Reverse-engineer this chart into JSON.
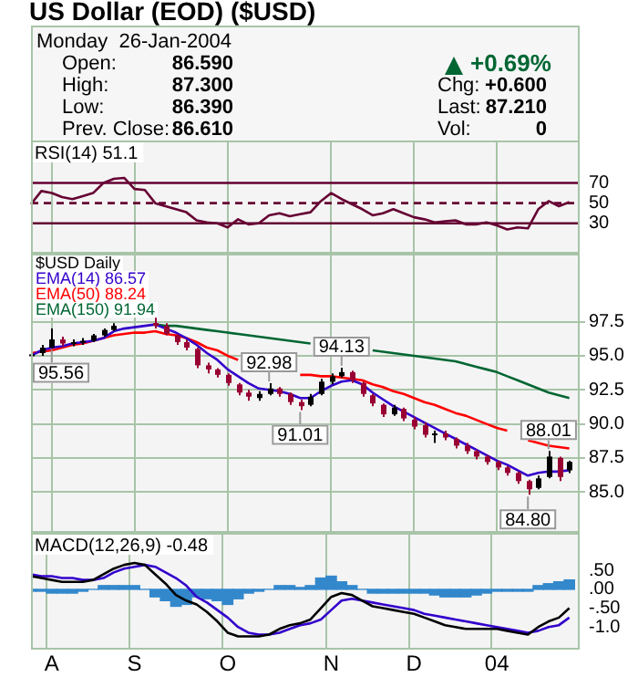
{
  "chart_data": [
    {
      "type": "other",
      "title": "US Dollar (EOD) ($USD)",
      "annotations": [
        "Monday  26-Jan-2004",
        "Open:",
        "86.590",
        "High:",
        "87.300",
        "Low:",
        "86.390",
        "Prev. Close:",
        "86.610",
        "+0.69%",
        "Chg:",
        "+0.600",
        "Last:",
        "87.210",
        "Vol:",
        "0"
      ]
    },
    {
      "type": "line",
      "title": "RSI(14) 51.1",
      "series": [
        {
          "color": "#660033",
          "values": [
            49,
            62,
            60,
            56,
            54,
            57,
            60,
            70,
            74,
            75,
            64,
            63,
            50,
            47,
            44,
            41,
            33,
            31,
            30,
            26,
            34,
            29,
            30,
            38,
            40,
            37,
            39,
            41,
            52,
            60,
            54,
            49,
            44,
            38,
            40,
            44,
            40,
            36,
            34,
            31,
            32,
            33,
            29,
            29,
            31,
            28,
            24,
            26,
            25,
            44,
            52,
            47,
            51,
            null
          ]
        }
      ],
      "ylim": [
        0,
        112
      ],
      "yticks": [
        30,
        50,
        70
      ],
      "ref_lines": [
        {
          "axis": "y",
          "value": 70,
          "color": "#660033"
        },
        {
          "axis": "y",
          "value": 50,
          "color": "#660033",
          "line_style": "dashed"
        },
        {
          "axis": "y",
          "value": 30,
          "color": "#660033"
        }
      ],
      "grid": "x",
      "tick_labels": "y"
    },
    {
      "type": "candlestick",
      "legend_title": "$USD Daily",
      "legend": "top left",
      "ohlc": [
        [
          95.0,
          95.3,
          94.8,
          95.1
        ],
        [
          95.2,
          95.8,
          95.0,
          95.6
        ],
        [
          95.6,
          97.0,
          95.56,
          96.2
        ],
        [
          96.2,
          96.4,
          95.7,
          95.9
        ],
        [
          95.9,
          96.2,
          95.7,
          96.0
        ],
        [
          96.0,
          96.3,
          95.8,
          96.1
        ],
        [
          96.1,
          96.6,
          96.0,
          96.5
        ],
        [
          96.5,
          97.0,
          96.4,
          96.9
        ],
        [
          96.9,
          97.4,
          96.8,
          97.2
        ],
        null,
        null,
        null,
        [
          97.4,
          97.8,
          97.0,
          97.2
        ],
        [
          97.2,
          97.4,
          96.5,
          96.6
        ],
        [
          96.5,
          96.6,
          95.8,
          96.0
        ],
        [
          96.0,
          96.2,
          95.4,
          95.6
        ],
        [
          95.5,
          95.6,
          94.1,
          94.3
        ],
        [
          94.3,
          94.5,
          93.7,
          94.0
        ],
        [
          94.0,
          94.1,
          93.4,
          93.6
        ],
        [
          93.6,
          93.7,
          92.8,
          93.0
        ],
        [
          92.9,
          93.0,
          92.1,
          92.3
        ],
        [
          92.3,
          92.5,
          91.7,
          92.0
        ],
        [
          91.9,
          92.4,
          91.7,
          92.2
        ],
        [
          92.2,
          92.98,
          92.1,
          92.6
        ],
        [
          92.6,
          92.7,
          92.0,
          92.2
        ],
        [
          92.2,
          92.3,
          91.4,
          91.6
        ],
        [
          91.6,
          91.8,
          91.01,
          91.3
        ],
        [
          91.4,
          92.2,
          91.3,
          92.0
        ],
        [
          92.2,
          93.3,
          92.1,
          93.1
        ],
        [
          93.1,
          93.7,
          92.9,
          93.5
        ],
        [
          93.5,
          94.13,
          93.4,
          93.8
        ],
        [
          93.8,
          93.9,
          93.0,
          93.2
        ],
        [
          93.0,
          93.1,
          92.0,
          92.2
        ],
        [
          92.1,
          92.2,
          91.3,
          91.5
        ],
        [
          91.4,
          91.5,
          90.5,
          90.7
        ],
        [
          90.7,
          91.4,
          90.6,
          91.2
        ],
        [
          91.1,
          91.2,
          90.2,
          90.4
        ],
        [
          90.3,
          90.5,
          89.6,
          89.8
        ],
        [
          89.9,
          90.1,
          89.0,
          89.2
        ],
        [
          89.2,
          89.5,
          88.6,
          89.3
        ],
        [
          89.3,
          89.5,
          88.8,
          89.0
        ],
        [
          88.9,
          89.0,
          88.2,
          88.4
        ],
        [
          88.4,
          88.6,
          87.8,
          88.0
        ],
        [
          88.0,
          88.1,
          87.4,
          87.6
        ],
        [
          87.6,
          87.7,
          87.0,
          87.2
        ],
        [
          87.2,
          87.3,
          86.6,
          86.8
        ],
        [
          86.8,
          86.9,
          86.2,
          86.4
        ],
        [
          86.4,
          86.5,
          85.6,
          85.8
        ],
        [
          85.8,
          85.9,
          84.8,
          85.2
        ],
        [
          85.3,
          86.2,
          85.2,
          86.0
        ],
        [
          86.1,
          88.01,
          86.0,
          87.6
        ],
        [
          87.5,
          87.6,
          85.8,
          86.1
        ],
        [
          86.59,
          87.3,
          86.39,
          87.21
        ],
        null
      ],
      "colors": [
        "#000000",
        "#000000",
        "#000000",
        "#990033",
        "#000000",
        "#000000",
        "#000000",
        "#000000",
        "#000000",
        null,
        null,
        null,
        "#990033",
        "#990033",
        "#990033",
        "#990033",
        "#990033",
        "#990033",
        "#990033",
        "#990033",
        "#990033",
        "#990033",
        "#000000",
        "#000000",
        "#990033",
        "#990033",
        "#990033",
        "#000000",
        "#000000",
        "#000000",
        "#000000",
        "#990033",
        "#990033",
        "#990033",
        "#990033",
        "#000000",
        "#990033",
        "#990033",
        "#990033",
        "#000000",
        "#990033",
        "#990033",
        "#990033",
        "#990033",
        "#990033",
        "#990033",
        "#990033",
        "#990033",
        "#990033",
        "#000000",
        "#000000",
        "#990033",
        "#000000",
        null
      ],
      "series": [
        {
          "name": "EMA(14) 86.57",
          "type": "line",
          "color": "#3300cc",
          "values": [
            95.0,
            95.4,
            95.6,
            95.7,
            95.9,
            96.0,
            96.1,
            96.3,
            96.8,
            97.0,
            97.1,
            97.2,
            97.3,
            97.0,
            96.7,
            96.3,
            95.8,
            95.2,
            94.7,
            94.0,
            93.5,
            93.0,
            92.6,
            92.5,
            92.4,
            92.2,
            91.9,
            91.9,
            92.4,
            92.8,
            93.1,
            93.2,
            92.9,
            92.3,
            91.8,
            91.3,
            90.9,
            90.5,
            90.1,
            89.7,
            89.3,
            88.9,
            88.5,
            88.1,
            87.7,
            87.3,
            87.0,
            86.6,
            86.2,
            86.4,
            86.5,
            86.5,
            86.6,
            null
          ]
        },
        {
          "name": "EMA(50) 88.24",
          "type": "line",
          "color": "#ff0000",
          "values": [
            95.2,
            95.3,
            95.4,
            95.6,
            95.8,
            95.9,
            96.1,
            96.3,
            96.5,
            96.6,
            96.7,
            96.7,
            96.8,
            96.6,
            96.5,
            96.3,
            96.0,
            95.6,
            95.4,
            95.0,
            94.7,
            null,
            null,
            null,
            null,
            null,
            93.6,
            93.6,
            93.5,
            93.5,
            93.4,
            93.3,
            93.2,
            92.9,
            92.7,
            92.4,
            92.2,
            91.9,
            91.6,
            91.4,
            91.1,
            90.8,
            90.6,
            90.3,
            90.0,
            89.7,
            89.5,
            null,
            88.8,
            88.6,
            88.4,
            88.3,
            88.2,
            null
          ]
        },
        {
          "name": "EMA(150) 91.94",
          "type": "line",
          "color": "#006633",
          "values": [
            null,
            null,
            null,
            null,
            null,
            null,
            null,
            null,
            null,
            null,
            null,
            null,
            97.3,
            97.2,
            97.2,
            97.1,
            97.0,
            96.9,
            96.8,
            96.7,
            96.6,
            96.5,
            96.4,
            96.3,
            96.2,
            96.1,
            96.0,
            95.9,
            null,
            null,
            null,
            null,
            null,
            95.4,
            95.3,
            95.2,
            95.1,
            95.0,
            94.9,
            94.8,
            94.7,
            94.6,
            94.4,
            94.2,
            94.0,
            93.8,
            93.5,
            93.2,
            92.9,
            92.6,
            92.3,
            92.1,
            91.9,
            null
          ]
        }
      ],
      "annotations": [
        {
          "text": "95.56",
          "y": 95.56
        },
        {
          "text": "92.98",
          "y": 92.98
        },
        {
          "text": "91.01",
          "y": 91.01
        },
        {
          "text": "94.13",
          "y": 94.13
        },
        {
          "text": "84.80",
          "y": 84.8
        },
        {
          "text": "88.01",
          "y": 88.01
        }
      ],
      "ylim": [
        82,
        102.5
      ],
      "yticks": [
        {
          "value": 85,
          "label": "85.0"
        },
        87.5,
        {
          "value": 90,
          "label": "90.0"
        },
        92.5,
        {
          "value": 95,
          "label": "95.0"
        },
        97.5
      ],
      "grid": true,
      "tick_labels": "y"
    },
    {
      "type": "line",
      "title": "MACD(12,26,9) -0.48",
      "categories": [
        null,
        null,
        "A",
        null,
        null,
        null,
        null,
        null,
        null,
        null,
        "S",
        null,
        null,
        null,
        null,
        null,
        null,
        null,
        null,
        "O",
        null,
        null,
        null,
        null,
        null,
        null,
        null,
        null,
        null,
        "N",
        null,
        null,
        null,
        null,
        null,
        null,
        null,
        "D",
        null,
        null,
        null,
        null,
        null,
        null,
        null,
        "04",
        null,
        null,
        null,
        null,
        null,
        null,
        null,
        null
      ],
      "series": [
        {
          "type": "bar",
          "color": "#3388cc",
          "values": [
            -0.05,
            -0.05,
            -0.1,
            -0.1,
            -0.1,
            -0.05,
            0,
            0.1,
            0.1,
            0.1,
            0.1,
            0,
            -0.2,
            -0.3,
            -0.45,
            -0.4,
            -0.2,
            -0.25,
            -0.3,
            -0.4,
            -0.25,
            -0.1,
            -0.05,
            0,
            0.1,
            0.1,
            0.05,
            0.1,
            0.3,
            0.35,
            0.2,
            0.1,
            0,
            -0.1,
            -0.1,
            -0.1,
            -0.1,
            -0.1,
            -0.1,
            -0.15,
            -0.2,
            -0.2,
            -0.2,
            -0.15,
            -0.1,
            -0.05,
            -0.05,
            -0.05,
            -0.05,
            0.1,
            0.15,
            0.2,
            0.25,
            null
          ]
        },
        {
          "type": "line",
          "color": "#000000",
          "values": [
            0.35,
            0.3,
            0.25,
            0.2,
            0.2,
            0.2,
            0.25,
            0.4,
            0.55,
            0.65,
            0.7,
            0.65,
            0.4,
            0.15,
            -0.15,
            -0.3,
            -0.4,
            -0.6,
            -0.85,
            -1.15,
            -1.25,
            -1.25,
            -1.25,
            -1.2,
            -1.05,
            -0.95,
            -0.9,
            -0.8,
            -0.5,
            -0.2,
            -0.1,
            -0.15,
            -0.3,
            -0.45,
            -0.5,
            -0.55,
            -0.6,
            -0.65,
            -0.75,
            -0.85,
            -0.95,
            -1.0,
            -1.05,
            -1.05,
            -1.05,
            -1.05,
            -1.1,
            -1.15,
            -1.2,
            -1.0,
            -0.85,
            -0.75,
            -0.5,
            null
          ]
        },
        {
          "type": "line",
          "color": "#3300cc",
          "values": [
            0.4,
            0.35,
            0.35,
            0.3,
            0.3,
            0.25,
            0.25,
            0.3,
            0.45,
            0.55,
            0.6,
            0.65,
            0.6,
            0.45,
            0.3,
            0.1,
            -0.2,
            -0.35,
            -0.55,
            -0.75,
            -1.0,
            -1.15,
            -1.2,
            -1.2,
            -1.15,
            -1.05,
            -0.95,
            -0.9,
            -0.8,
            -0.55,
            -0.3,
            -0.25,
            -0.3,
            -0.35,
            -0.4,
            -0.45,
            -0.5,
            -0.55,
            -0.65,
            -0.7,
            -0.75,
            -0.8,
            -0.85,
            -0.9,
            -0.95,
            -1.0,
            -1.05,
            -1.1,
            -1.15,
            -1.1,
            -1.0,
            -0.95,
            -0.75,
            null
          ]
        }
      ],
      "ylim": [
        -1.6,
        1.5
      ],
      "yticks": [
        {
          "value": 0.5,
          "label": ".50"
        },
        {
          "value": 0,
          "label": ".00"
        },
        {
          "value": -0.5,
          "label": "-.50"
        },
        {
          "value": -1,
          "label": "-1.0"
        }
      ],
      "grid": "x"
    }
  ]
}
